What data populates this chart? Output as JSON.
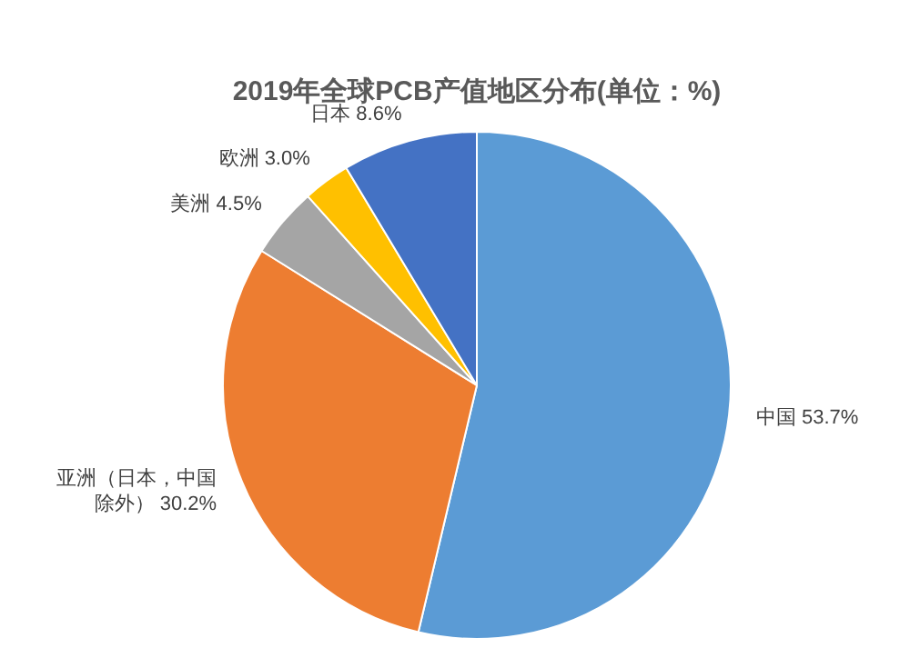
{
  "chart_data": {
    "type": "pie",
    "title": "2019年全球PCB产值地区分布(单位：%)",
    "categories": [
      "中国",
      "亚洲（日本，中国除外）",
      "美洲",
      "欧洲",
      "日本"
    ],
    "values": [
      53.7,
      30.2,
      4.5,
      3.0,
      8.6
    ],
    "value_labels": [
      "53.7%",
      "30.2%",
      "4.5%",
      "3.0%",
      "8.6%"
    ],
    "colors": [
      "#5b9bd5",
      "#ed7d31",
      "#a5a5a5",
      "#ffc000",
      "#4472c4"
    ],
    "legend": false
  }
}
